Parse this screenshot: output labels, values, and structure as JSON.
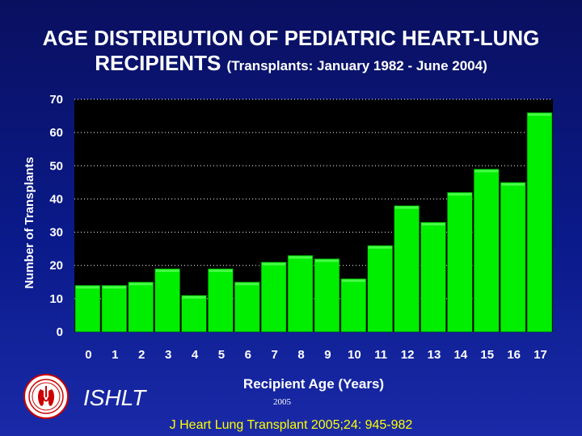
{
  "header": {
    "title_line1": "AGE DISTRIBUTION OF PEDIATRIC HEART-LUNG",
    "title_line2": "RECIPIENTS",
    "subtitle": "(Transplants: January 1982 - June 2004)"
  },
  "footer": {
    "org": "ISHLT",
    "year": "2005",
    "citation": "J Heart Lung Transplant 2005;24: 945-982"
  },
  "colors": {
    "bar": "#00ee00",
    "plot_bg": "#000000",
    "text": "#ffffff",
    "citation": "#ffff00"
  },
  "chart_data": {
    "type": "bar",
    "title": "AGE DISTRIBUTION OF PEDIATRIC HEART-LUNG RECIPIENTS (Transplants: January 1982 - June 2004)",
    "xlabel": "Recipient Age (Years)",
    "ylabel": "Number of Transplants",
    "ylim": [
      0,
      70
    ],
    "yticks": [
      0,
      10,
      20,
      30,
      40,
      50,
      60,
      70
    ],
    "grid": true,
    "categories": [
      "0",
      "1",
      "2",
      "3",
      "4",
      "5",
      "6",
      "7",
      "8",
      "9",
      "10",
      "11",
      "12",
      "13",
      "14",
      "15",
      "16",
      "17"
    ],
    "values": [
      14,
      14,
      15,
      19,
      11,
      19,
      15,
      21,
      23,
      22,
      16,
      26,
      38,
      33,
      42,
      49,
      45,
      66
    ]
  }
}
